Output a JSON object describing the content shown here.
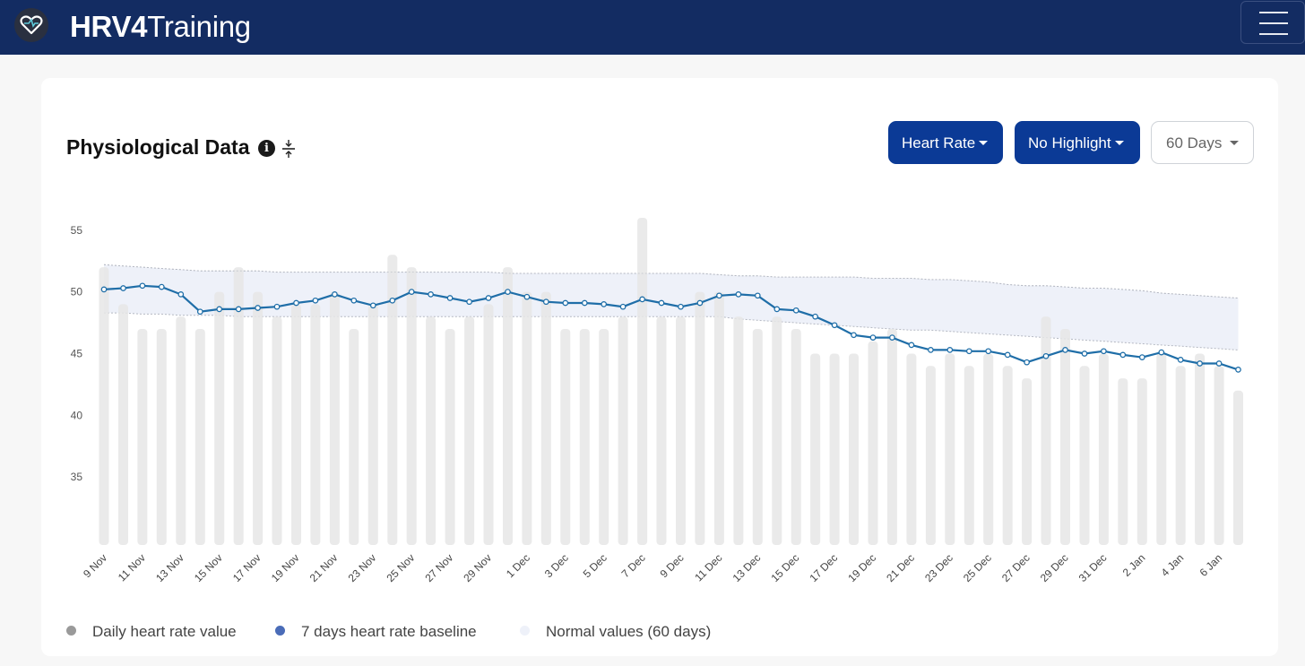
{
  "navbar": {
    "brand_bold": "HRV4",
    "brand_rest": "Training"
  },
  "card": {
    "title": "Physiological Data"
  },
  "controls": {
    "metric": "Heart Rate",
    "highlight": "No Highlight",
    "range": "60 Days"
  },
  "colors": {
    "bar": "#e6e6e6",
    "line": "#1f6ea8",
    "band": "#eef1f9",
    "band_edge": "#b4b8c2",
    "navbar": "#132c62",
    "button": "#0b3a96"
  },
  "chart_data": {
    "type": "bar",
    "yticks": [
      35,
      40,
      45,
      50,
      55
    ],
    "ylim": [
      29.5,
      56
    ],
    "x": [
      "9 Nov",
      "10 Nov",
      "11 Nov",
      "12 Nov",
      "13 Nov",
      "14 Nov",
      "15 Nov",
      "16 Nov",
      "17 Nov",
      "18 Nov",
      "19 Nov",
      "20 Nov",
      "21 Nov",
      "22 Nov",
      "23 Nov",
      "24 Nov",
      "25 Nov",
      "26 Nov",
      "27 Nov",
      "28 Nov",
      "29 Nov",
      "30 Nov",
      "1 Dec",
      "2 Dec",
      "3 Dec",
      "4 Dec",
      "5 Dec",
      "6 Dec",
      "7 Dec",
      "8 Dec",
      "9 Dec",
      "10 Dec",
      "11 Dec",
      "12 Dec",
      "13 Dec",
      "14 Dec",
      "15 Dec",
      "16 Dec",
      "17 Dec",
      "18 Dec",
      "19 Dec",
      "20 Dec",
      "21 Dec",
      "22 Dec",
      "23 Dec",
      "24 Dec",
      "25 Dec",
      "26 Dec",
      "27 Dec",
      "28 Dec",
      "29 Dec",
      "30 Dec",
      "31 Dec",
      "1 Jan",
      "2 Jan",
      "3 Jan",
      "4 Jan",
      "5 Jan",
      "6 Jan",
      "7 Jan"
    ],
    "x_tick_labels": [
      "9 Nov",
      "11 Nov",
      "13 Nov",
      "15 Nov",
      "17 Nov",
      "19 Nov",
      "21 Nov",
      "23 Nov",
      "25 Nov",
      "27 Nov",
      "29 Nov",
      "1 Dec",
      "3 Dec",
      "5 Dec",
      "7 Dec",
      "9 Dec",
      "11 Dec",
      "13 Dec",
      "15 Dec",
      "17 Dec",
      "19 Dec",
      "21 Dec",
      "23 Dec",
      "25 Dec",
      "27 Dec",
      "29 Dec",
      "31 Dec",
      "2 Jan",
      "4 Jan",
      "6 Jan"
    ],
    "series": [
      {
        "name": "Daily heart rate value",
        "type": "bar",
        "values": [
          52,
          49,
          47,
          47,
          48,
          47,
          50,
          52,
          50,
          48,
          49,
          49,
          50,
          47,
          49,
          53,
          52,
          48,
          47,
          48,
          49,
          52,
          50,
          50,
          47,
          47,
          47,
          48,
          56,
          48,
          48,
          50,
          50,
          48,
          47,
          48,
          47,
          45,
          45,
          45,
          46,
          47,
          45,
          44,
          45,
          44,
          45,
          44,
          43,
          48,
          47,
          44,
          45,
          43,
          43,
          45,
          44,
          45,
          44,
          42
        ]
      },
      {
        "name": "7 days heart rate baseline",
        "type": "line",
        "values": [
          50.2,
          50.3,
          50.5,
          50.4,
          49.8,
          48.4,
          48.6,
          48.6,
          48.7,
          48.8,
          49.1,
          49.3,
          49.8,
          49.3,
          48.9,
          49.3,
          50.0,
          49.8,
          49.5,
          49.2,
          49.5,
          50.0,
          49.6,
          49.2,
          49.1,
          49.1,
          49.0,
          48.8,
          49.4,
          49.1,
          48.8,
          49.1,
          49.7,
          49.8,
          49.7,
          48.6,
          48.5,
          48.0,
          47.3,
          46.5,
          46.3,
          46.3,
          45.7,
          45.3,
          45.3,
          45.2,
          45.2,
          44.9,
          44.3,
          44.8,
          45.3,
          45.0,
          45.2,
          44.9,
          44.7,
          45.1,
          44.5,
          44.2,
          44.2,
          43.7
        ]
      },
      {
        "name": "Normal values (60 days)",
        "type": "band",
        "upper": [
          52.2,
          52.1,
          52.0,
          51.9,
          51.8,
          51.7,
          51.7,
          51.7,
          51.7,
          51.6,
          51.6,
          51.6,
          51.6,
          51.6,
          51.6,
          51.6,
          51.6,
          51.6,
          51.6,
          51.6,
          51.6,
          51.5,
          51.5,
          51.5,
          51.5,
          51.5,
          51.5,
          51.5,
          51.5,
          51.5,
          51.5,
          51.5,
          51.4,
          51.3,
          51.3,
          51.2,
          51.2,
          51.2,
          51.2,
          51.2,
          51.1,
          51.1,
          51.1,
          51.0,
          51.0,
          50.9,
          50.8,
          50.6,
          50.5,
          50.5,
          50.4,
          50.3,
          50.3,
          50.2,
          50.1,
          49.9,
          49.8,
          49.7,
          49.6,
          49.5
        ],
        "lower": [
          48.3,
          48.3,
          48.2,
          48.2,
          48.1,
          48.1,
          48.1,
          48.0,
          48.0,
          48.0,
          48.0,
          48.0,
          48.0,
          48.0,
          48.0,
          48.0,
          48.0,
          48.0,
          48.0,
          48.0,
          48.0,
          48.0,
          48.0,
          48.0,
          48.0,
          48.0,
          48.0,
          48.0,
          48.0,
          48.0,
          48.0,
          48.0,
          48.0,
          47.8,
          47.7,
          47.6,
          47.5,
          47.4,
          47.3,
          47.2,
          47.1,
          47.0,
          46.9,
          46.9,
          46.8,
          46.7,
          46.6,
          46.5,
          46.4,
          46.3,
          46.2,
          46.1,
          46.0,
          45.9,
          45.8,
          45.7,
          45.6,
          45.5,
          45.4,
          45.3
        ]
      }
    ],
    "legend": [
      "Daily heart rate value",
      "7 days heart rate baseline",
      "Normal values (60 days)"
    ],
    "legend_placement": "bottom-left",
    "grid": false
  }
}
